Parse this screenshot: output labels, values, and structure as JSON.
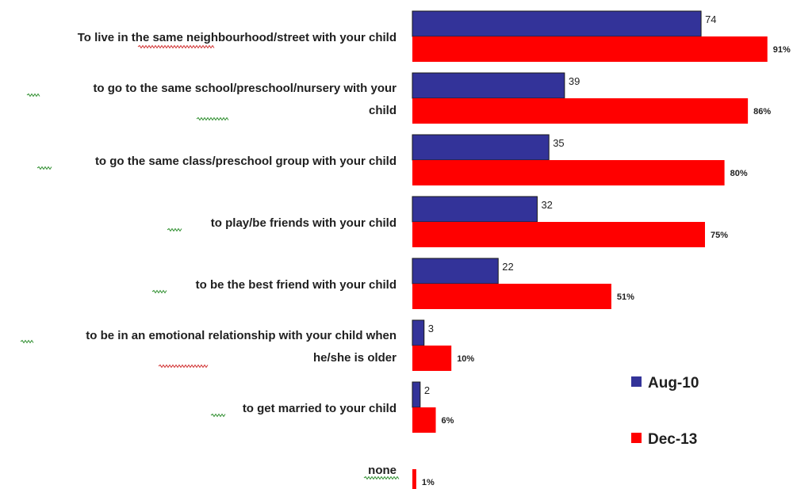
{
  "chart_data": {
    "type": "bar",
    "orientation": "horizontal",
    "categories": [
      [
        "To live in the same neighbourhood/street with your child"
      ],
      [
        "to go to the same school/preschool/nursery with your",
        "child"
      ],
      [
        "to go the same class/preschool group with your child"
      ],
      [
        "to play/be friends with your child"
      ],
      [
        "to be the best friend with your child"
      ],
      [
        "to be in an emotional relationship with your child when",
        "he/she is older"
      ],
      [
        "to get married to your child"
      ],
      [
        "none"
      ]
    ],
    "series": [
      {
        "name": "Aug-10",
        "color": "#333399",
        "values": [
          74,
          39,
          35,
          32,
          22,
          3,
          2,
          null
        ],
        "labels": [
          "74",
          "39",
          "35",
          "32",
          "22",
          "3",
          "2",
          ""
        ]
      },
      {
        "name": "Dec-13",
        "color": "#ff0000",
        "values": [
          91,
          86,
          80,
          75,
          51,
          10,
          6,
          1
        ],
        "labels": [
          "91%",
          "86%",
          "80%",
          "75%",
          "51%",
          "10%",
          "6%",
          "1%"
        ]
      }
    ],
    "xlim": [
      0,
      100
    ],
    "grid": false,
    "legend_position": "right"
  }
}
